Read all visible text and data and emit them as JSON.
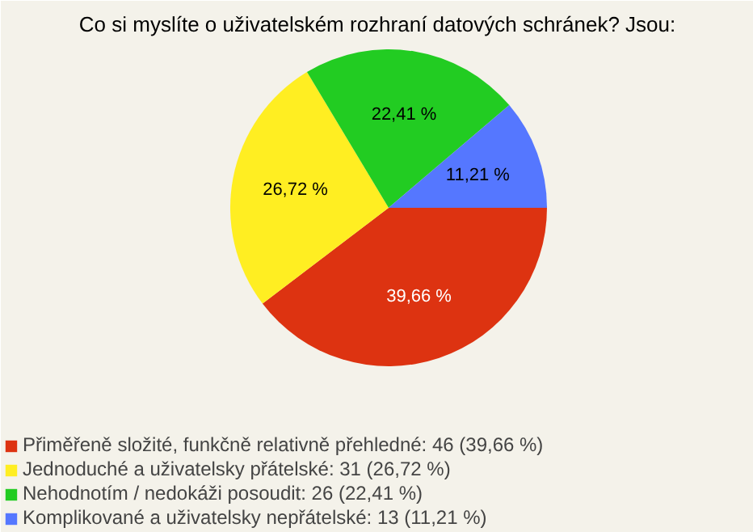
{
  "chart_data": {
    "type": "pie",
    "title": "Co si myslíte o uživatelském rozhraní datových schránek? Jsou:",
    "categories": [
      "Přiměřeně složité, funkčně relativně přehledné: 46 (39,66 %)",
      "Jednoduché a uživatelsky přátelské: 31 (26,72 %)",
      "Nehodnotím / nedokáži posoudit: 26 (22,41 %)",
      "Komplikované a uživatelsky nepřátelské: 13 (11,21 %)"
    ],
    "values": [
      39.66,
      26.72,
      22.41,
      11.21
    ],
    "value_labels": [
      "39,66 %",
      "26,72 %",
      "22,41 %",
      "11,21 %"
    ],
    "colors": [
      "#dd3311",
      "#ffee22",
      "#22cc22",
      "#5577ff"
    ],
    "legend": "bottom left"
  }
}
